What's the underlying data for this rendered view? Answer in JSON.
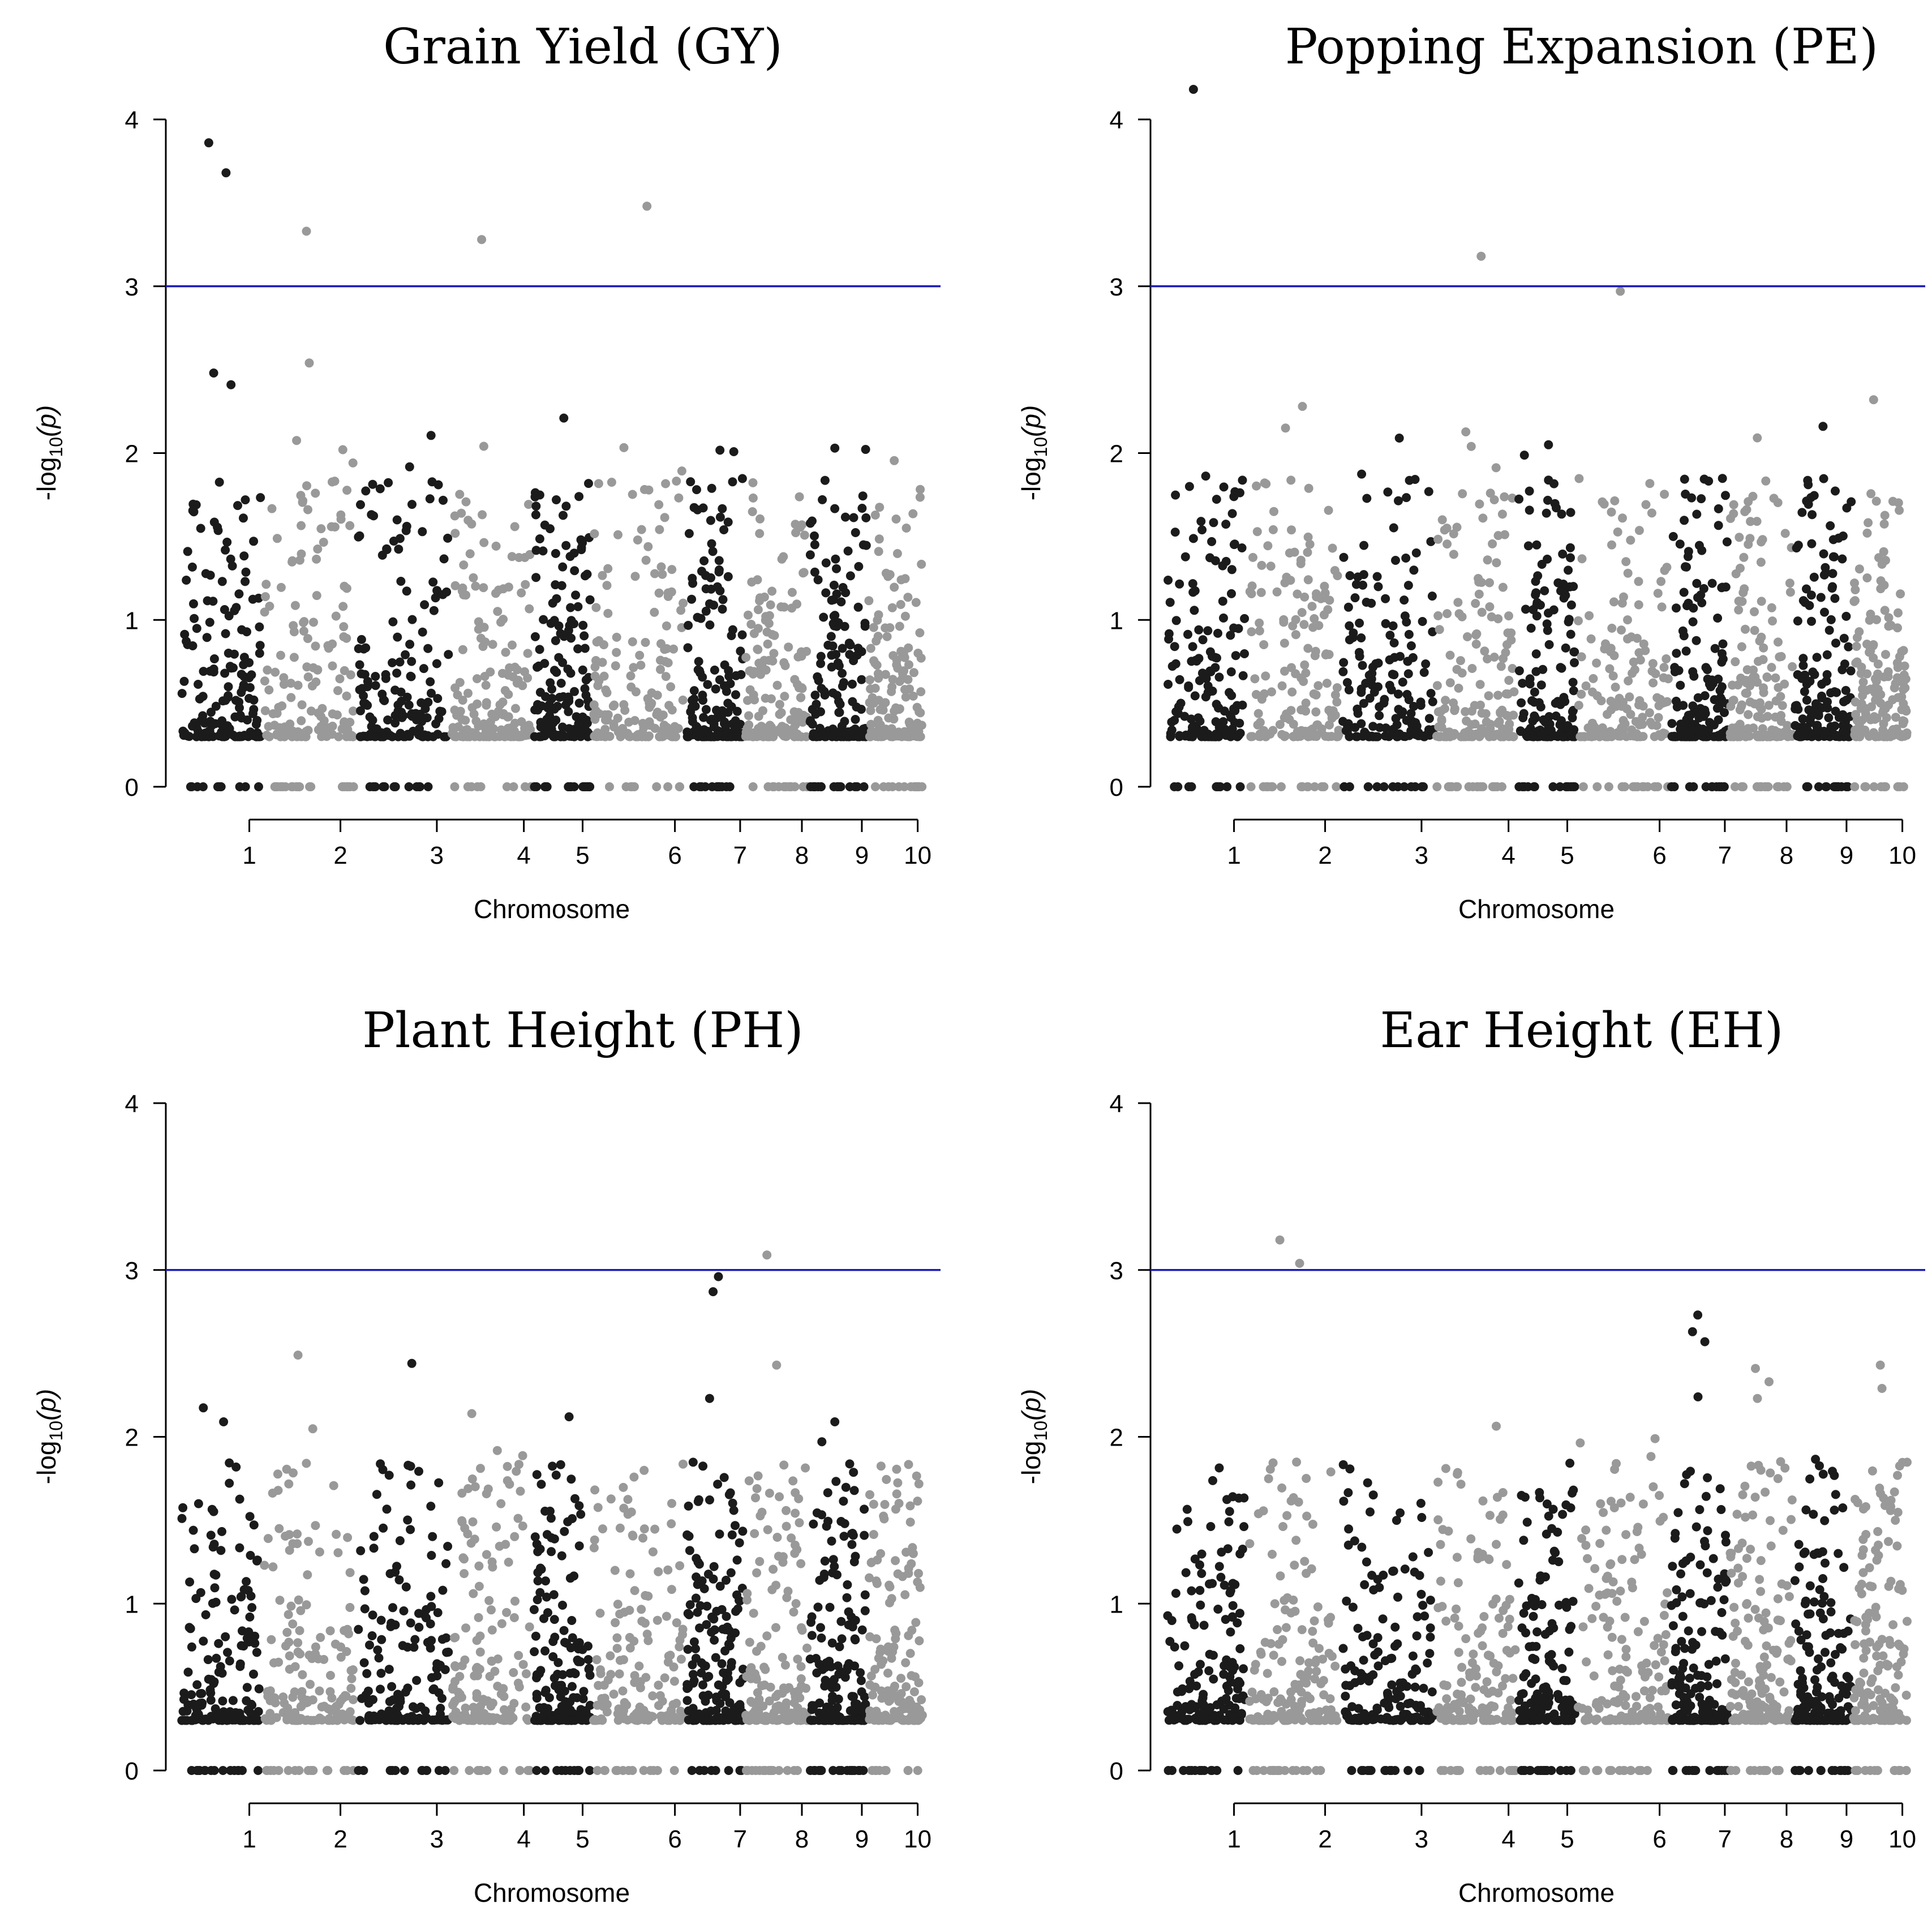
{
  "chart_data": [
    {
      "type": "scatter",
      "title": "Grain Yield (GY)",
      "xlabel": "Chromosome",
      "ylabel_prefix": "-log",
      "ylabel_sub": "10",
      "ylabel_suffix": "(p)",
      "ylim": [
        0,
        4
      ],
      "yticks": [
        0,
        1,
        2,
        3,
        4
      ],
      "threshold": 3,
      "chromosomes": [
        "1",
        "2",
        "3",
        "4",
        "5",
        "6",
        "7",
        "8",
        "9",
        "10"
      ],
      "highlight_points": [
        {
          "chr": 1,
          "y": 3.86
        },
        {
          "chr": 1,
          "y": 3.68
        },
        {
          "chr": 2,
          "y": 3.33
        },
        {
          "chr": 4,
          "y": 3.28
        },
        {
          "chr": 6,
          "y": 3.48
        },
        {
          "chr": 2,
          "y": 2.54
        },
        {
          "chr": 1,
          "y": 2.48
        },
        {
          "chr": 1,
          "y": 2.41
        },
        {
          "chr": 5,
          "y": 2.21
        },
        {
          "chr": 9,
          "y": 2.03
        }
      ]
    },
    {
      "type": "scatter",
      "title": "Popping Expansion (PE)",
      "xlabel": "Chromosome",
      "ylabel_prefix": "-log",
      "ylabel_sub": "10",
      "ylabel_suffix": "(p)",
      "ylim": [
        0,
        4
      ],
      "yticks": [
        0,
        1,
        2,
        3,
        4
      ],
      "threshold": 3,
      "chromosomes": [
        "1",
        "2",
        "3",
        "4",
        "5",
        "6",
        "7",
        "8",
        "9",
        "10"
      ],
      "highlight_points": [
        {
          "chr": 1,
          "y": 4.18
        },
        {
          "chr": 4,
          "y": 3.18
        },
        {
          "chr": 6,
          "y": 2.97
        },
        {
          "chr": 10,
          "y": 2.32
        },
        {
          "chr": 2,
          "y": 2.28
        },
        {
          "chr": 9,
          "y": 2.16
        },
        {
          "chr": 2,
          "y": 2.15
        },
        {
          "chr": 3,
          "y": 2.09
        },
        {
          "chr": 5,
          "y": 2.05
        },
        {
          "chr": 4,
          "y": 2.04
        }
      ]
    },
    {
      "type": "scatter",
      "title": "Plant Height (PH)",
      "xlabel": "Chromosome",
      "ylabel_prefix": "-log",
      "ylabel_sub": "10",
      "ylabel_suffix": "(p)",
      "ylim": [
        0,
        4
      ],
      "yticks": [
        0,
        1,
        2,
        3,
        4
      ],
      "threshold": 3,
      "chromosomes": [
        "1",
        "2",
        "3",
        "4",
        "5",
        "6",
        "7",
        "8",
        "9",
        "10"
      ],
      "highlight_points": [
        {
          "chr": 8,
          "y": 3.09
        },
        {
          "chr": 7,
          "y": 2.96
        },
        {
          "chr": 7,
          "y": 2.87
        },
        {
          "chr": 2,
          "y": 2.49
        },
        {
          "chr": 3,
          "y": 2.44
        },
        {
          "chr": 8,
          "y": 2.43
        },
        {
          "chr": 7,
          "y": 2.23
        },
        {
          "chr": 5,
          "y": 2.12
        },
        {
          "chr": 1,
          "y": 2.09
        },
        {
          "chr": 9,
          "y": 2.09
        }
      ]
    },
    {
      "type": "scatter",
      "title": "Ear Height (EH)",
      "xlabel": "Chromosome",
      "ylabel_prefix": "-log",
      "ylabel_sub": "10",
      "ylabel_suffix": "(p)",
      "ylim": [
        0,
        4
      ],
      "yticks": [
        0,
        1,
        2,
        3,
        4
      ],
      "threshold": 3,
      "chromosomes": [
        "1",
        "2",
        "3",
        "4",
        "5",
        "6",
        "7",
        "8",
        "9",
        "10"
      ],
      "highlight_points": [
        {
          "chr": 2,
          "y": 3.18
        },
        {
          "chr": 2,
          "y": 3.04
        },
        {
          "chr": 7,
          "y": 2.73
        },
        {
          "chr": 7,
          "y": 2.63
        },
        {
          "chr": 7,
          "y": 2.57
        },
        {
          "chr": 10,
          "y": 2.43
        },
        {
          "chr": 8,
          "y": 2.41
        },
        {
          "chr": 8,
          "y": 2.33
        },
        {
          "chr": 10,
          "y": 2.29
        },
        {
          "chr": 8,
          "y": 2.23
        }
      ]
    }
  ]
}
